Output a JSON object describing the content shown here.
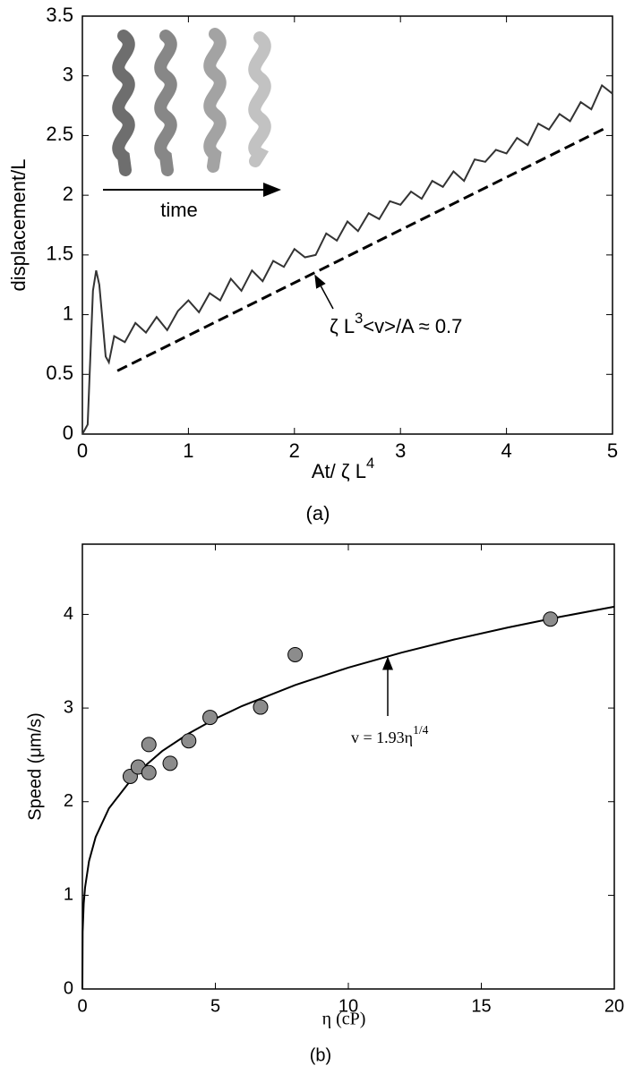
{
  "chart_data": [
    {
      "type": "line",
      "xlabel": {
        "text": "At/ ζ L",
        "sup": "4"
      },
      "ylabel": "displacement/L",
      "caption": "(a)",
      "annotation": {
        "text": "ζ L",
        "sup": "3",
        "after": "<v>/A  ≈ 0.7"
      },
      "inset_label": "time",
      "xlim": [
        0,
        5
      ],
      "ylim": [
        0,
        3.5
      ],
      "xticks": [
        0,
        1,
        2,
        3,
        4,
        5
      ],
      "yticks": [
        0,
        0.5,
        1,
        1.5,
        2,
        2.5,
        3,
        3.5
      ],
      "series": [
        {
          "color": "#333333",
          "dashed": false,
          "x": [
            0,
            0.05,
            0.1,
            0.13,
            0.16,
            0.19,
            0.22,
            0.25,
            0.3,
            0.4,
            0.5,
            0.6,
            0.7,
            0.8,
            0.9,
            1.0,
            1.1,
            1.2,
            1.3,
            1.4,
            1.5,
            1.6,
            1.7,
            1.8,
            1.9,
            2.0,
            2.1,
            2.2,
            2.3,
            2.4,
            2.5,
            2.6,
            2.7,
            2.8,
            2.9,
            3.0,
            3.1,
            3.2,
            3.3,
            3.4,
            3.5,
            3.6,
            3.7,
            3.8,
            3.9,
            4.0,
            4.1,
            4.2,
            4.3,
            4.4,
            4.5,
            4.6,
            4.7,
            4.8,
            4.9,
            5.0
          ],
          "values": [
            0,
            0.08,
            1.2,
            1.37,
            1.25,
            0.95,
            0.65,
            0.6,
            0.82,
            0.77,
            0.93,
            0.85,
            0.98,
            0.87,
            1.03,
            1.12,
            1.02,
            1.18,
            1.12,
            1.3,
            1.2,
            1.37,
            1.28,
            1.45,
            1.4,
            1.55,
            1.48,
            1.5,
            1.68,
            1.62,
            1.78,
            1.7,
            1.85,
            1.8,
            1.95,
            1.92,
            2.03,
            1.97,
            2.12,
            2.07,
            2.2,
            2.12,
            2.3,
            2.28,
            2.38,
            2.35,
            2.48,
            2.42,
            2.6,
            2.55,
            2.68,
            2.62,
            2.78,
            2.72,
            2.92,
            2.85
          ]
        },
        {
          "color": "#000000",
          "dashed": true,
          "x": [
            0.33,
            4.95
          ],
          "values": [
            0.53,
            2.57
          ]
        }
      ]
    },
    {
      "type": "scatter",
      "xlabel": "η (cP)",
      "ylabel": "Speed (μm/s)",
      "caption": "(b)",
      "annotation": {
        "text": "v = 1.93η",
        "sup": "1/4"
      },
      "xlim": [
        0,
        20
      ],
      "ylim": [
        0,
        4.75
      ],
      "xticks": [
        0,
        5,
        10,
        15,
        20
      ],
      "yticks": [
        0,
        1,
        2,
        3,
        4
      ],
      "series": [
        {
          "type": "line",
          "color": "#000000",
          "x": [
            0,
            0.01,
            0.05,
            0.1,
            0.25,
            0.5,
            1,
            2,
            3,
            4,
            5,
            6,
            8,
            10,
            12,
            14,
            16,
            18,
            20
          ],
          "values": [
            0,
            0.61,
            0.913,
            1.085,
            1.365,
            1.623,
            1.93,
            2.295,
            2.54,
            2.729,
            2.886,
            3.021,
            3.246,
            3.432,
            3.592,
            3.733,
            3.86,
            3.976,
            4.082
          ]
        },
        {
          "type": "scatter",
          "color": "#8c8c8c",
          "x": [
            1.8,
            2.1,
            2.5,
            2.5,
            3.3,
            4.0,
            4.8,
            6.7,
            8.0,
            17.6
          ],
          "values": [
            2.27,
            2.37,
            2.61,
            2.31,
            2.41,
            2.65,
            2.9,
            3.01,
            3.57,
            3.95
          ]
        }
      ]
    }
  ]
}
